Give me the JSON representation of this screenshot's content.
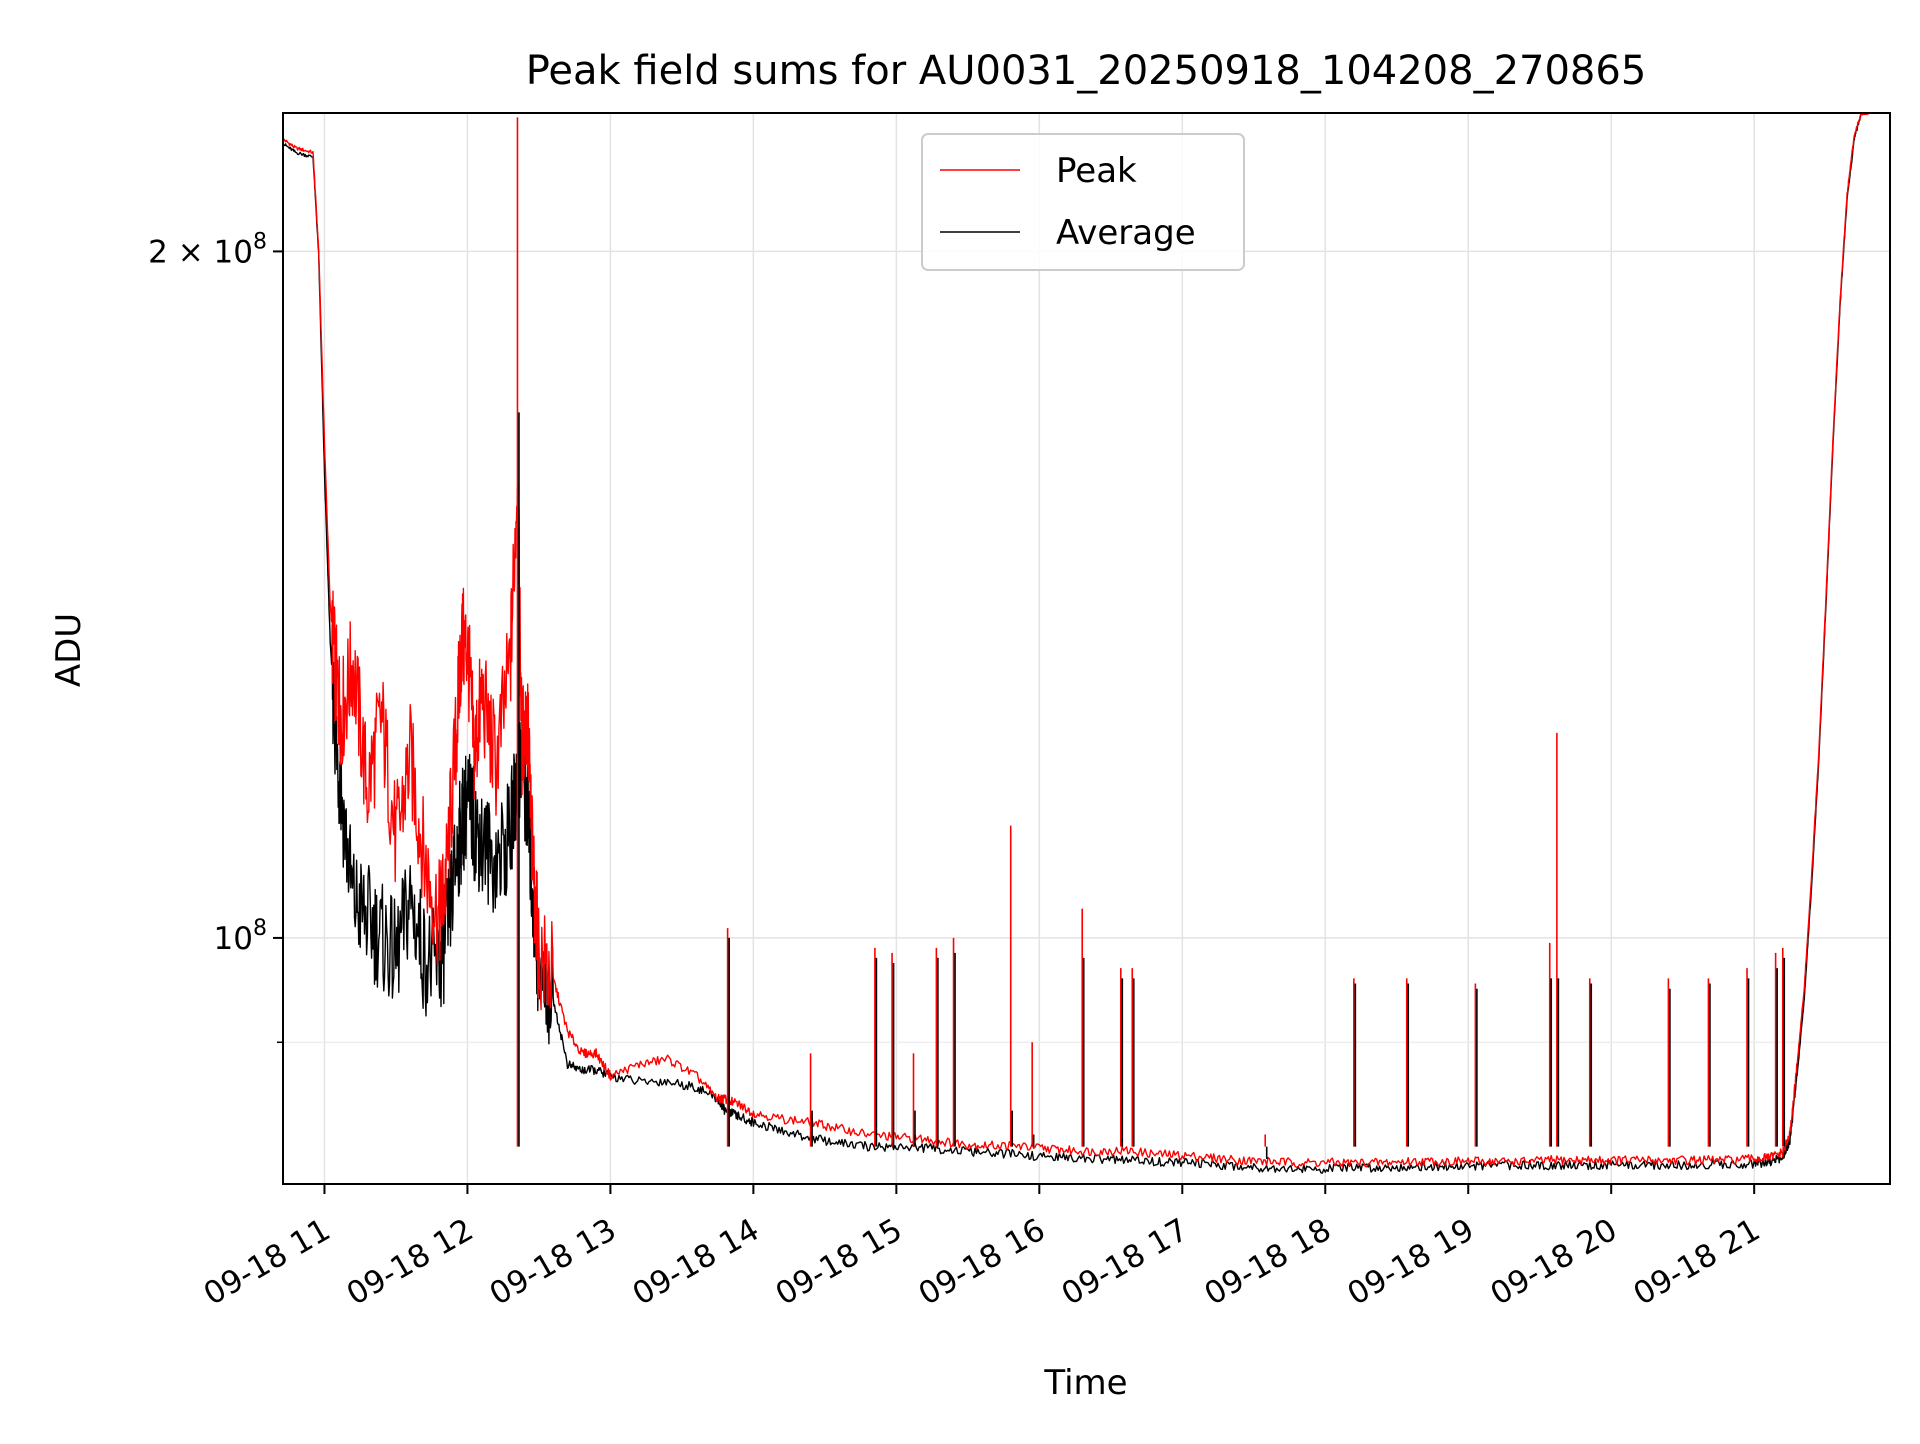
{
  "chart_data": {
    "type": "line",
    "title": "Peak field sums for AU0031_20250918_104208_270865",
    "xlabel": "Time",
    "ylabel": "ADU",
    "x_unit": "hour of 2025-09-18",
    "xlim": [
      10.71,
      21.95
    ],
    "ylim": [
      78000000,
      230000000
    ],
    "y_scale": "log",
    "grid": true,
    "legend_position": "top-center",
    "x_ticks": [
      {
        "value": 11,
        "label": "09-18 11"
      },
      {
        "value": 12,
        "label": "09-18 12"
      },
      {
        "value": 13,
        "label": "09-18 13"
      },
      {
        "value": 14,
        "label": "09-18 14"
      },
      {
        "value": 15,
        "label": "09-18 15"
      },
      {
        "value": 16,
        "label": "09-18 16"
      },
      {
        "value": 17,
        "label": "09-18 17"
      },
      {
        "value": 18,
        "label": "09-18 18"
      },
      {
        "value": 19,
        "label": "09-18 19"
      },
      {
        "value": 20,
        "label": "09-18 20"
      },
      {
        "value": 21,
        "label": "09-18 21"
      }
    ],
    "y_major_ticks": [
      {
        "value": 200000000,
        "label_base": "2 × 10",
        "label_exp": "8"
      },
      {
        "value": 100000000,
        "label_base": "10",
        "label_exp": "8"
      }
    ],
    "y_minor_ticks": [
      90000000
    ],
    "series": [
      {
        "name": "Peak",
        "color": "#ff0000",
        "x": [
          10.71,
          10.8,
          10.92,
          10.96,
          11.0,
          11.04,
          11.08,
          11.12,
          11.2,
          11.3,
          11.4,
          11.5,
          11.6,
          11.7,
          11.8,
          11.85,
          11.92,
          11.96,
          12.0,
          12.05,
          12.1,
          12.2,
          12.3,
          12.35,
          12.38,
          12.42,
          12.45,
          12.5,
          12.6,
          12.7,
          12.8,
          12.9,
          13.0,
          13.2,
          13.4,
          13.6,
          13.75,
          13.8,
          13.9,
          14.0,
          14.2,
          14.4,
          14.6,
          14.8,
          15.0,
          15.2,
          15.4,
          15.6,
          15.8,
          16.0,
          16.2,
          16.4,
          16.6,
          16.8,
          17.0,
          17.2,
          17.4,
          17.6,
          17.8,
          18.0,
          18.2,
          18.4,
          18.6,
          18.8,
          19.0,
          19.2,
          19.4,
          19.6,
          19.8,
          20.0,
          20.2,
          20.4,
          20.6,
          20.8,
          21.0,
          21.1,
          21.2,
          21.25,
          21.3,
          21.35,
          21.4,
          21.45,
          21.5,
          21.55,
          21.6,
          21.65,
          21.7,
          21.75,
          21.8
        ],
        "y": [
          224000000,
          222000000,
          221000000,
          200000000,
          165000000,
          140000000,
          130000000,
          125000000,
          132000000,
          116000000,
          125000000,
          110000000,
          120000000,
          108000000,
          102000000,
          106000000,
          122000000,
          135000000,
          134000000,
          120000000,
          128000000,
          119000000,
          132000000,
          160000000,
          122000000,
          125000000,
          110000000,
          98000000,
          96000000,
          91000000,
          89000000,
          89000000,
          87000000,
          88000000,
          88500000,
          87000000,
          85000000,
          85000000,
          84500000,
          83800000,
          83300000,
          83000000,
          82500000,
          82000000,
          81800000,
          81600000,
          81300000,
          81100000,
          81100000,
          80900000,
          80700000,
          80600000,
          80700000,
          80400000,
          80300000,
          80100000,
          79900000,
          79800000,
          79700000,
          79700000,
          79700000,
          79700000,
          79800000,
          79800000,
          79800000,
          79800000,
          79800000,
          79900000,
          79900000,
          79900000,
          79900000,
          79900000,
          79900000,
          79900000,
          80000000,
          80100000,
          80500000,
          82000000,
          88000000,
          95000000,
          106000000,
          120000000,
          140000000,
          165000000,
          190000000,
          212000000,
          225000000,
          230000000,
          230000000
        ]
      },
      {
        "name": "Average",
        "color": "#000000",
        "x": [
          10.71,
          10.8,
          10.92,
          10.96,
          11.0,
          11.04,
          11.08,
          11.12,
          11.2,
          11.3,
          11.4,
          11.5,
          11.6,
          11.7,
          11.8,
          11.85,
          11.92,
          11.96,
          12.0,
          12.05,
          12.1,
          12.2,
          12.3,
          12.35,
          12.38,
          12.42,
          12.45,
          12.5,
          12.6,
          12.7,
          12.8,
          12.9,
          13.0,
          13.2,
          13.4,
          13.6,
          13.75,
          13.8,
          13.9,
          14.0,
          14.2,
          14.4,
          14.6,
          14.8,
          15.0,
          15.2,
          15.4,
          15.6,
          15.8,
          16.0,
          16.2,
          16.4,
          16.6,
          16.8,
          17.0,
          17.2,
          17.4,
          17.6,
          17.8,
          18.0,
          18.2,
          18.4,
          18.6,
          18.8,
          19.0,
          19.2,
          19.4,
          19.6,
          19.8,
          20.0,
          20.2,
          20.4,
          20.6,
          20.8,
          21.0,
          21.1,
          21.2,
          21.25,
          21.3,
          21.35,
          21.4,
          21.45,
          21.5,
          21.55,
          21.6,
          21.65,
          21.7,
          21.75,
          21.8
        ],
        "y": [
          223000000,
          221000000,
          220000000,
          199000000,
          160000000,
          135000000,
          122000000,
          115000000,
          104000000,
          102000000,
          100000000,
          98000000,
          104000000,
          98000000,
          97000000,
          100000000,
          108000000,
          112000000,
          115000000,
          112000000,
          110000000,
          108000000,
          111000000,
          118000000,
          120000000,
          114000000,
          106000000,
          96000000,
          94000000,
          88000000,
          87500000,
          87500000,
          87000000,
          86500000,
          86500000,
          86000000,
          85000000,
          84000000,
          83500000,
          83000000,
          82300000,
          81700000,
          81300000,
          81000000,
          81000000,
          80900000,
          80700000,
          80500000,
          80400000,
          80200000,
          80100000,
          80000000,
          79900000,
          79800000,
          79700000,
          79600000,
          79400000,
          79300000,
          79200000,
          79200000,
          79300000,
          79300000,
          79400000,
          79400000,
          79400000,
          79500000,
          79500000,
          79500000,
          79500000,
          79500000,
          79500000,
          79500000,
          79500000,
          79600000,
          79600000,
          79700000,
          80100000,
          81500000,
          87000000,
          94000000,
          105000000,
          119000000,
          139000000,
          164000000,
          189000000,
          211000000,
          224000000,
          230000000,
          230000000
        ]
      }
    ],
    "spikes": [
      {
        "x": 12.35,
        "peak": 229000000,
        "average": 170000000
      },
      {
        "x": 13.82,
        "peak": 101000000,
        "average": 100000000
      },
      {
        "x": 14.4,
        "peak": 89000000,
        "average": 84000000
      },
      {
        "x": 14.85,
        "peak": 99000000,
        "average": 98000000
      },
      {
        "x": 14.97,
        "peak": 98500000,
        "average": 97500000
      },
      {
        "x": 15.12,
        "peak": 89000000,
        "average": 84000000
      },
      {
        "x": 15.28,
        "peak": 99000000,
        "average": 98000000
      },
      {
        "x": 15.4,
        "peak": 100000000,
        "average": 98500000
      },
      {
        "x": 15.8,
        "peak": 112000000,
        "average": 84000000
      },
      {
        "x": 15.95,
        "peak": 90000000,
        "average": 82000000
      },
      {
        "x": 16.3,
        "peak": 103000000,
        "average": 98000000
      },
      {
        "x": 16.57,
        "peak": 97000000,
        "average": 96000000
      },
      {
        "x": 16.65,
        "peak": 97000000,
        "average": 96000000
      },
      {
        "x": 17.58,
        "peak": 82000000,
        "average": 80000000
      },
      {
        "x": 18.2,
        "peak": 96000000,
        "average": 95500000
      },
      {
        "x": 18.57,
        "peak": 96000000,
        "average": 95500000
      },
      {
        "x": 19.05,
        "peak": 95500000,
        "average": 95000000
      },
      {
        "x": 19.57,
        "peak": 99500000,
        "average": 96000000
      },
      {
        "x": 19.62,
        "peak": 123000000,
        "average": 96000000
      },
      {
        "x": 19.85,
        "peak": 96000000,
        "average": 95500000
      },
      {
        "x": 20.4,
        "peak": 96000000,
        "average": 95000000
      },
      {
        "x": 20.68,
        "peak": 96000000,
        "average": 95500000
      },
      {
        "x": 20.95,
        "peak": 97000000,
        "average": 96000000
      },
      {
        "x": 21.15,
        "peak": 98500000,
        "average": 97000000
      },
      {
        "x": 21.2,
        "peak": 99000000,
        "average": 98000000
      }
    ]
  }
}
